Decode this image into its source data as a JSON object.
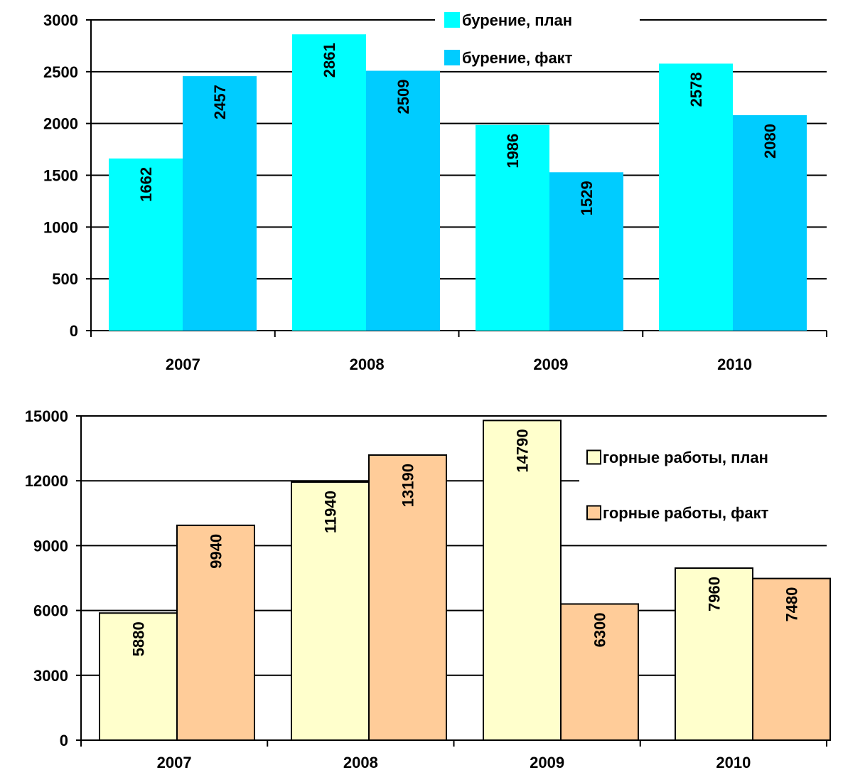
{
  "chart_data": [
    {
      "type": "bar",
      "categories": [
        "2007",
        "2008",
        "2009",
        "2010"
      ],
      "series": [
        {
          "name": "бурение, план",
          "values": [
            1662,
            2861,
            1986,
            2578
          ],
          "color": "#00FFFF"
        },
        {
          "name": "бурение, факт",
          "values": [
            2457,
            2509,
            1529,
            2080
          ],
          "color": "#00CCFF"
        }
      ],
      "ylim": [
        0,
        3000
      ],
      "yticks": [
        0,
        500,
        1000,
        1500,
        2000,
        2500,
        3000
      ],
      "grid": true,
      "bar_outline": false,
      "legend_position": "top-right",
      "title": "",
      "xlabel": "",
      "ylabel": ""
    },
    {
      "type": "bar",
      "categories": [
        "2007",
        "2008",
        "2009",
        "2010"
      ],
      "series": [
        {
          "name": "горные работы, план",
          "values": [
            5880,
            11940,
            14790,
            7960
          ],
          "color": "#FFFFCC"
        },
        {
          "name": "горные работы, факт",
          "values": [
            9940,
            13190,
            6300,
            7480
          ],
          "color": "#FFCC99"
        }
      ],
      "ylim": [
        0,
        15000
      ],
      "yticks": [
        0,
        3000,
        6000,
        9000,
        12000,
        15000
      ],
      "grid": true,
      "bar_outline": true,
      "legend_position": "right",
      "title": "",
      "xlabel": "",
      "ylabel": ""
    }
  ]
}
